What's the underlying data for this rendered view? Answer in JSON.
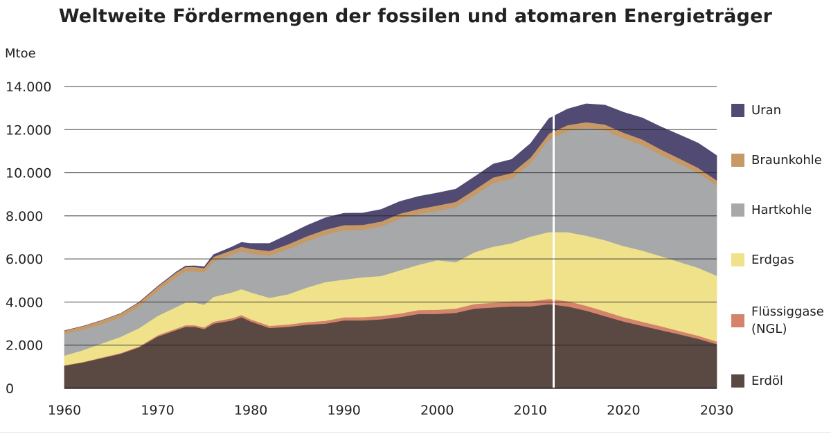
{
  "chart_data": {
    "type": "area",
    "stacked": true,
    "title": "Weltweite Fördermengen der fossilen und atomaren Energieträger",
    "ylabel": "Mtoe",
    "xlim": [
      1960,
      2030
    ],
    "ylim": [
      0,
      14000
    ],
    "x_ticks": [
      "1960",
      "1970",
      "1980",
      "1990",
      "2000",
      "2010",
      "2020",
      "2030"
    ],
    "y_ticks": [
      "0",
      "2.000",
      "4.000",
      "6.000",
      "8.000",
      "10.000",
      "12.000",
      "14.000"
    ],
    "y_tick_values": [
      0,
      2000,
      4000,
      6000,
      8000,
      10000,
      12000,
      14000
    ],
    "grid": true,
    "legend_position": "right",
    "divider_x": 2012.5,
    "divider_color": "#ffffff",
    "axis_color": "#222222",
    "grid_color": "#222222",
    "x": [
      1960,
      1962,
      1964,
      1966,
      1968,
      1970,
      1972,
      1973,
      1974,
      1975,
      1976,
      1978,
      1979,
      1980,
      1982,
      1984,
      1986,
      1988,
      1990,
      1992,
      1994,
      1996,
      1998,
      2000,
      2002,
      2004,
      2006,
      2008,
      2010,
      2012,
      2014,
      2016,
      2018,
      2020,
      2022,
      2024,
      2026,
      2028,
      2030
    ],
    "series": [
      {
        "name": "Erdöl",
        "color": "#5a4843",
        "values": [
          1050,
          1200,
          1400,
          1600,
          1900,
          2400,
          2700,
          2850,
          2850,
          2750,
          3000,
          3150,
          3300,
          3100,
          2800,
          2850,
          2950,
          3000,
          3150,
          3150,
          3200,
          3300,
          3450,
          3450,
          3500,
          3700,
          3750,
          3800,
          3800,
          3900,
          3800,
          3600,
          3350,
          3100,
          2900,
          2700,
          2500,
          2300,
          2050
        ]
      },
      {
        "name": "Flüssiggase\n(NGL)",
        "color": "#d4846a",
        "values": [
          20,
          20,
          30,
          30,
          40,
          60,
          70,
          80,
          80,
          80,
          90,
          100,
          100,
          100,
          100,
          110,
          120,
          130,
          140,
          150,
          160,
          170,
          180,
          190,
          200,
          210,
          220,
          230,
          240,
          250,
          240,
          230,
          220,
          200,
          190,
          180,
          160,
          140,
          120
        ]
      },
      {
        "name": "Erdgas",
        "color": "#efe28b",
        "values": [
          450,
          550,
          650,
          750,
          850,
          900,
          1000,
          1050,
          1050,
          1050,
          1150,
          1200,
          1200,
          1250,
          1300,
          1400,
          1600,
          1800,
          1750,
          1850,
          1850,
          2000,
          2100,
          2300,
          2150,
          2400,
          2600,
          2700,
          3000,
          3100,
          3200,
          3250,
          3300,
          3300,
          3300,
          3250,
          3200,
          3150,
          3050
        ]
      },
      {
        "name": "Hartkohle",
        "color": "#a7a8aa",
        "values": [
          1000,
          950,
          900,
          900,
          1000,
          1150,
          1400,
          1450,
          1450,
          1500,
          1650,
          1750,
          1750,
          1800,
          1950,
          2100,
          2150,
          2200,
          2300,
          2200,
          2300,
          2400,
          2350,
          2300,
          2550,
          2650,
          2950,
          3000,
          3400,
          4300,
          4700,
          5000,
          5100,
          5000,
          4900,
          4700,
          4550,
          4400,
          4200
        ]
      },
      {
        "name": "Braunkohle",
        "color": "#c69966",
        "values": [
          150,
          160,
          170,
          180,
          190,
          200,
          200,
          200,
          200,
          200,
          210,
          210,
          220,
          220,
          220,
          220,
          230,
          230,
          230,
          230,
          230,
          230,
          240,
          240,
          250,
          250,
          260,
          260,
          260,
          270,
          270,
          270,
          270,
          260,
          260,
          250,
          250,
          240,
          230
        ]
      },
      {
        "name": "Uran",
        "color": "#514a73",
        "values": [
          0,
          0,
          0,
          0,
          10,
          20,
          30,
          40,
          50,
          60,
          100,
          150,
          200,
          250,
          350,
          450,
          500,
          550,
          550,
          550,
          560,
          570,
          580,
          580,
          590,
          600,
          620,
          630,
          650,
          700,
          750,
          850,
          900,
          950,
          1000,
          1050,
          1100,
          1150,
          1150
        ]
      }
    ]
  }
}
